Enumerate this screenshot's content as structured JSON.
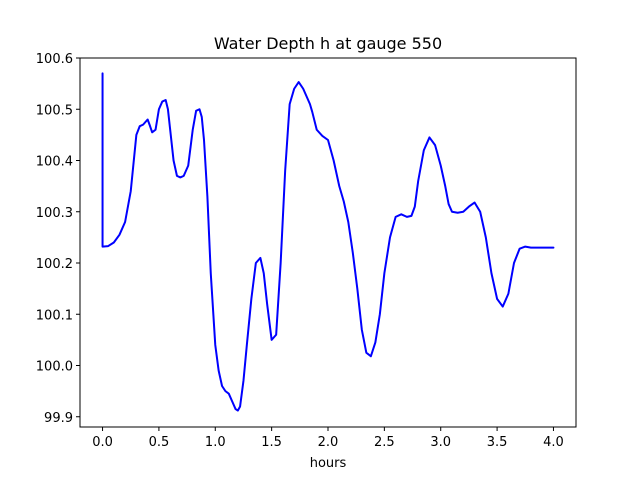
{
  "chart_data": {
    "type": "line",
    "title": "Water Depth h at gauge 550",
    "xlabel": "hours",
    "ylabel": "",
    "xlim": [
      -0.2,
      4.2
    ],
    "ylim": [
      99.88,
      100.6
    ],
    "xticks": [
      0.0,
      0.5,
      1.0,
      1.5,
      2.0,
      2.5,
      3.0,
      3.5,
      4.0
    ],
    "xtick_labels": [
      "0.0",
      "0.5",
      "1.0",
      "1.5",
      "2.0",
      "2.5",
      "3.0",
      "3.5",
      "4.0"
    ],
    "yticks": [
      99.9,
      100.0,
      100.1,
      100.2,
      100.3,
      100.4,
      100.5,
      100.6
    ],
    "ytick_labels": [
      "99.9",
      "100.0",
      "100.1",
      "100.2",
      "100.3",
      "100.4",
      "100.5",
      "100.6"
    ],
    "grid": false,
    "series": [
      {
        "color": "#0000ff",
        "x": [
          0.0,
          0.0,
          0.0,
          0.05,
          0.1,
          0.15,
          0.2,
          0.25,
          0.3,
          0.33,
          0.36,
          0.4,
          0.42,
          0.44,
          0.47,
          0.5,
          0.53,
          0.56,
          0.58,
          0.6,
          0.63,
          0.66,
          0.69,
          0.72,
          0.76,
          0.8,
          0.83,
          0.86,
          0.88,
          0.9,
          0.93,
          0.96,
          1.0,
          1.03,
          1.06,
          1.09,
          1.12,
          1.15,
          1.18,
          1.2,
          1.22,
          1.25,
          1.28,
          1.32,
          1.36,
          1.4,
          1.43,
          1.46,
          1.5,
          1.54,
          1.58,
          1.62,
          1.66,
          1.7,
          1.74,
          1.78,
          1.82,
          1.84,
          1.86,
          1.9,
          1.95,
          2.0,
          2.05,
          2.1,
          2.14,
          2.18,
          2.22,
          2.26,
          2.3,
          2.34,
          2.38,
          2.42,
          2.46,
          2.5,
          2.55,
          2.6,
          2.65,
          2.7,
          2.74,
          2.77,
          2.8,
          2.85,
          2.9,
          2.95,
          3.0,
          3.04,
          3.07,
          3.1,
          3.15,
          3.2,
          3.25,
          3.3,
          3.35,
          3.4,
          3.45,
          3.5,
          3.55,
          3.6,
          3.65,
          3.7,
          3.75,
          3.8,
          3.85,
          3.9,
          3.95,
          4.0
        ],
        "y": [
          100.57,
          100.4,
          100.232,
          100.233,
          100.24,
          100.255,
          100.28,
          100.34,
          100.45,
          100.467,
          100.47,
          100.48,
          100.468,
          100.455,
          100.46,
          100.5,
          100.515,
          100.518,
          100.5,
          100.46,
          100.4,
          100.37,
          100.367,
          100.37,
          100.39,
          100.46,
          100.497,
          100.5,
          100.485,
          100.44,
          100.33,
          100.18,
          100.04,
          99.99,
          99.96,
          99.95,
          99.945,
          99.93,
          99.915,
          99.912,
          99.92,
          99.97,
          100.04,
          100.13,
          100.2,
          100.21,
          100.18,
          100.12,
          100.05,
          100.06,
          100.2,
          100.38,
          100.51,
          100.54,
          100.553,
          100.54,
          100.52,
          100.51,
          100.495,
          100.46,
          100.448,
          100.44,
          100.4,
          100.35,
          100.32,
          100.28,
          100.22,
          100.15,
          100.07,
          100.025,
          100.018,
          100.045,
          100.1,
          100.18,
          100.25,
          100.29,
          100.295,
          100.29,
          100.292,
          100.31,
          100.36,
          100.42,
          100.445,
          100.43,
          100.39,
          100.35,
          100.315,
          100.3,
          100.298,
          100.3,
          100.31,
          100.318,
          100.3,
          100.25,
          100.18,
          100.13,
          100.115,
          100.14,
          100.2,
          100.228,
          100.232,
          100.23,
          100.23,
          100.23,
          100.23,
          100.23
        ]
      }
    ]
  }
}
